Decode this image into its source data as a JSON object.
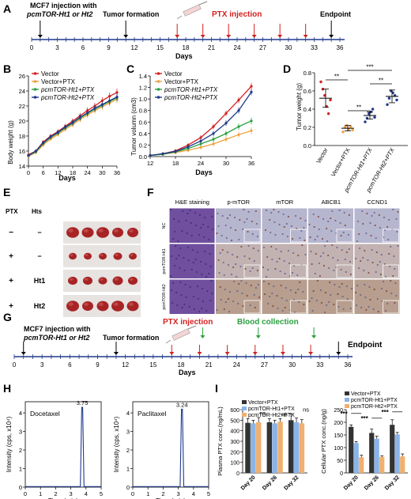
{
  "panel_a": {
    "letter": "A",
    "inject_line1": "MCF7 injection with",
    "inject_line2": "pcmTOR-Ht1 or Ht2",
    "tumor_formation": "Tumor formation",
    "ptx_injection": "PTX injection",
    "endpoint": "Endpoint",
    "days_label": "Days",
    "ticks": [
      "0",
      "3",
      "6",
      "9",
      "12",
      "15",
      "18",
      "21",
      "24",
      "27",
      "30",
      "33",
      "36"
    ],
    "color_ptx": "#d42020"
  },
  "panel_b": {
    "letter": "B",
    "ylabel": "Body weight (g)",
    "xlabel": "Days",
    "yticks": [
      "14",
      "16",
      "18",
      "20",
      "22",
      "24",
      "26"
    ],
    "xticks": [
      "0",
      "6",
      "12",
      "18",
      "24",
      "30",
      "36"
    ],
    "legend": [
      "Vector",
      "Vector+PTX",
      "pcmTOR-Ht1+PTX",
      "pcmTOR-Ht2+PTX"
    ]
  },
  "panel_c": {
    "letter": "C",
    "ylabel": "Tumor volumn (cm3)",
    "xlabel": "Days",
    "yticks": [
      "0.0",
      "0.2",
      "0.4",
      "0.6",
      "0.8",
      "1.0",
      "1.2",
      "1.4"
    ],
    "xticks": [
      "12",
      "18",
      "24",
      "30",
      "36"
    ],
    "legend": [
      "Vector",
      "Vector+PTX",
      "pcmTOR-Ht1+PTX",
      "pcmTOR-Ht2+PTX"
    ]
  },
  "panel_d": {
    "letter": "D",
    "ylabel": "Tumor weight (g)",
    "yticks": [
      "0.0",
      "0.2",
      "0.4",
      "0.6",
      "0.8"
    ],
    "categories": [
      "Vector",
      "Vector+PTX",
      "pcmTOR-Ht1+PTX",
      "pcmTOR-Ht2+PTX"
    ],
    "sig": [
      "**",
      "**",
      "**",
      "***"
    ]
  },
  "panel_e": {
    "letter": "E",
    "col_ptx": "PTX",
    "col_hts": "Hts",
    "rows": [
      {
        "ptx": "−",
        "hts": "−"
      },
      {
        "ptx": "+",
        "hts": "−"
      },
      {
        "ptx": "+",
        "hts": "Ht1"
      },
      {
        "ptx": "+",
        "hts": "Ht2"
      }
    ]
  },
  "panel_f": {
    "letter": "F",
    "columns": [
      "H&E staining",
      "p-mTOR",
      "mTOR",
      "ABCB1",
      "CCND1"
    ],
    "rows": [
      "NC",
      "pcmTOR-Ht1",
      "pcmTOR-Ht2"
    ]
  },
  "panel_g": {
    "letter": "G",
    "inject_line1": "MCF7 injection with",
    "inject_line2": "pcmTOR-Ht1 or Ht2",
    "tumor_formation": "Tumor formation",
    "ptx_injection": "PTX injection",
    "blood_collection": "Blood collection",
    "endpoint": "Endpoint",
    "days_label": "Days",
    "ticks": [
      "0",
      "3",
      "6",
      "9",
      "12",
      "15",
      "18",
      "21",
      "24",
      "27",
      "30",
      "33",
      "36"
    ],
    "color_blood": "#2aa040"
  },
  "panel_h": {
    "letter": "H",
    "ylabel": "Intensity (cps, x10⁴)",
    "xlabel": "Time (min)",
    "xticks": [
      "0",
      "1",
      "2",
      "3",
      "4",
      "5"
    ],
    "yticks": [
      "0",
      "1",
      "2",
      "3",
      "4"
    ],
    "plots": [
      {
        "name": "Docetaxel",
        "peak": "3.75"
      },
      {
        "name": "Paclitaxel",
        "peak": "3.24"
      }
    ]
  },
  "panel_i": {
    "letter": "I",
    "legend": [
      "Vector+PTX",
      "pcmTOR-Ht1+PTX",
      "pcmTOR-Ht2+PTX"
    ],
    "left_ylabel": "Plasma PTX conc.(ng/mL)",
    "right_ylabel": "Cellular PTX conc.(ng/g)",
    "categories": [
      "Day 20",
      "Day 26",
      "Day 32"
    ],
    "left_yticks": [
      "0",
      "100",
      "200",
      "300",
      "400",
      "500",
      "600"
    ],
    "right_yticks": [
      "0",
      "50",
      "100",
      "150",
      "200",
      "250"
    ],
    "ns_label": "ns",
    "sig_label": "***"
  },
  "chart_data": [
    {
      "type": "line",
      "id": "B",
      "xlabel": "Days",
      "ylabel": "Body weight (g)",
      "ylim": [
        14,
        26
      ],
      "x": [
        0,
        3,
        6,
        9,
        12,
        15,
        18,
        21,
        24,
        27,
        30,
        33,
        36
      ],
      "series": [
        {
          "name": "Vector",
          "color": "#d42020",
          "values": [
            15.5,
            16.0,
            17.2,
            18.0,
            18.6,
            19.3,
            20.0,
            20.7,
            21.4,
            22.0,
            22.7,
            23.3,
            23.8
          ]
        },
        {
          "name": "Vector+PTX",
          "color": "#f0a040",
          "values": [
            15.3,
            15.8,
            16.8,
            17.6,
            18.2,
            18.9,
            19.5,
            20.2,
            20.8,
            21.4,
            21.9,
            22.4,
            22.9
          ]
        },
        {
          "name": "pcmTOR-Ht1+PTX",
          "color": "#2aa040",
          "values": [
            15.4,
            15.9,
            17.0,
            17.8,
            18.4,
            19.1,
            19.7,
            20.4,
            21.0,
            21.6,
            22.1,
            22.6,
            23.1
          ]
        },
        {
          "name": "pcmTOR-Ht2+PTX",
          "color": "#203a8c",
          "values": [
            15.4,
            16.0,
            17.1,
            17.9,
            18.5,
            19.2,
            19.8,
            20.5,
            21.1,
            21.7,
            22.2,
            22.7,
            23.2
          ]
        }
      ]
    },
    {
      "type": "line",
      "id": "C",
      "xlabel": "Days",
      "ylabel": "Tumor volumn (cm3)",
      "ylim": [
        0,
        1.4
      ],
      "x": [
        12,
        15,
        18,
        21,
        24,
        27,
        30,
        33,
        36
      ],
      "series": [
        {
          "name": "Vector",
          "color": "#d42020",
          "values": [
            0.02,
            0.05,
            0.1,
            0.2,
            0.33,
            0.52,
            0.75,
            0.98,
            1.22
          ]
        },
        {
          "name": "Vector+PTX",
          "color": "#f0a040",
          "values": [
            0.02,
            0.04,
            0.07,
            0.11,
            0.16,
            0.22,
            0.3,
            0.38,
            0.45
          ]
        },
        {
          "name": "pcmTOR-Ht1+PTX",
          "color": "#2aa040",
          "values": [
            0.02,
            0.04,
            0.08,
            0.14,
            0.22,
            0.3,
            0.4,
            0.52,
            0.62
          ]
        },
        {
          "name": "pcmTOR-Ht2+PTX",
          "color": "#203a8c",
          "values": [
            0.02,
            0.05,
            0.09,
            0.17,
            0.27,
            0.4,
            0.58,
            0.8,
            1.12
          ]
        }
      ]
    },
    {
      "type": "scatter",
      "id": "D",
      "ylabel": "Tumor weight (g)",
      "ylim": [
        0,
        0.8
      ],
      "categories": [
        "Vector",
        "Vector+PTX",
        "pcmTOR-Ht1+PTX",
        "pcmTOR-Ht2+PTX"
      ],
      "means": [
        0.52,
        0.19,
        0.33,
        0.54
      ],
      "errors": [
        0.1,
        0.03,
        0.04,
        0.07
      ],
      "points": [
        [
          0.7,
          0.62,
          0.55,
          0.43,
          0.35,
          0.5
        ],
        [
          0.15,
          0.2,
          0.22,
          0.18,
          0.21,
          0.17
        ],
        [
          0.26,
          0.3,
          0.35,
          0.37,
          0.4,
          0.31
        ],
        [
          0.45,
          0.52,
          0.6,
          0.58,
          0.55,
          0.5
        ]
      ],
      "colors": [
        "#d42020",
        "#f0a040",
        "#203a8c",
        "#203a8c"
      ]
    },
    {
      "type": "line",
      "id": "H-Docetaxel",
      "xlabel": "Time (min)",
      "ylabel": "Intensity (cps, x10⁴)",
      "xlim": [
        0,
        5
      ],
      "ylim": [
        0,
        4.6
      ],
      "peak_x": 3.75,
      "peak_y": 4.3,
      "color": "#203a8c"
    },
    {
      "type": "line",
      "id": "H-Paclitaxel",
      "xlabel": "Time (min)",
      "ylabel": "Intensity (cps, x10⁴)",
      "xlim": [
        0,
        5
      ],
      "ylim": [
        0,
        4.6
      ],
      "peak_x": 3.24,
      "peak_y": 4.2,
      "color": "#203a8c"
    },
    {
      "type": "bar",
      "id": "I-left",
      "ylabel": "Plasma PTX conc.(ng/mL)",
      "ylim": [
        0,
        600
      ],
      "categories": [
        "Day 20",
        "Day 26",
        "Day 32"
      ],
      "series": [
        {
          "name": "Vector+PTX",
          "color": "#333333",
          "values": [
            475,
            480,
            500
          ],
          "errors": [
            40,
            35,
            60
          ]
        },
        {
          "name": "pcmTOR-Ht1+PTX",
          "color": "#8ab4e8",
          "values": [
            470,
            470,
            480
          ],
          "errors": [
            30,
            30,
            40
          ]
        },
        {
          "name": "pcmTOR-Ht2+PTX",
          "color": "#f0b070",
          "values": [
            480,
            485,
            470
          ],
          "errors": [
            45,
            30,
            35
          ]
        }
      ]
    },
    {
      "type": "bar",
      "id": "I-right",
      "ylabel": "Cellular PTX conc.(ng/g)",
      "ylim": [
        0,
        250
      ],
      "categories": [
        "Day 20",
        "Day 26",
        "Day 32"
      ],
      "series": [
        {
          "name": "Vector+PTX",
          "color": "#333333",
          "values": [
            182,
            158,
            190
          ],
          "errors": [
            8,
            15,
            20
          ]
        },
        {
          "name": "pcmTOR-Ht1+PTX",
          "color": "#8ab4e8",
          "values": [
            118,
            135,
            152
          ],
          "errors": [
            6,
            10,
            8
          ]
        },
        {
          "name": "pcmTOR-Ht2+PTX",
          "color": "#f0b070",
          "values": [
            62,
            63,
            65
          ],
          "errors": [
            8,
            5,
            10
          ]
        }
      ]
    }
  ]
}
